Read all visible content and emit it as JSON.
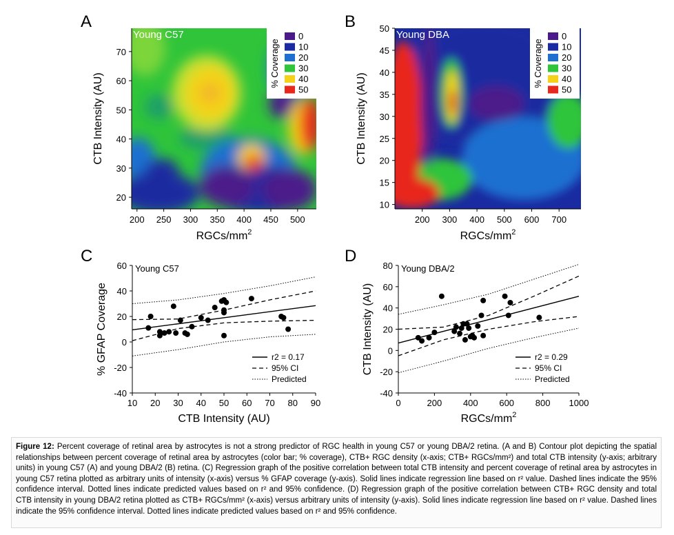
{
  "figure": {
    "caption_label": "Figure 12:",
    "caption_text": "Percent coverage of retinal area by astrocytes is not a strong predictor of RGC health in young C57 or young DBA/2 retina. (A and B) Contour plot depicting the spatial relationships between percent coverage of retinal area by astrocytes (color bar; % coverage), CTB+ RGC density (x-axis; CTB+ RGCs/mm²) and total CTB intensity (y-axis; arbitrary units) in young C57 (A) and young DBA/2 (B) retina. (C) Regression graph of the positive correlation between total CTB intensity and percent coverage of retinal area by astrocytes in young C57 retina plotted as arbitrary units of intensity (x-axis) versus % GFAP coverage (y-axis). Solid lines indicate regression line based on r² value. Dashed lines indicate the 95% confidence interval. Dotted lines indicate predicted values based on r² and 95% confidence. (D) Regression graph of the positive correlation between CTB+ RGC density and total CTB intensity in young DBA/2 retina plotted as CTB+ RGCs/mm² (x-axis) versus arbitrary units of intensity (y-axis). Solid lines indicate regression line based on r² value. Dashed lines indicate the 95% confidence interval. Dotted lines indicate predicted values based on r² and 95% confidence."
  },
  "colors": {
    "c0": "#4b1a8a",
    "c10": "#1a2aa0",
    "c20": "#1f6fd0",
    "c30": "#2fc43a",
    "c40": "#f5d219",
    "c50": "#e8281c"
  },
  "chart_data": [
    {
      "panel": "A",
      "type": "heatmap",
      "title": "Young C57",
      "xlabel": "RGCs/mm2",
      "ylabel": "CTB Intensity (AU)",
      "xticks": [
        "200",
        "250",
        "300",
        "350",
        "400",
        "450",
        "500"
      ],
      "yticks": [
        "20",
        "30",
        "40",
        "50",
        "60",
        "70"
      ],
      "xlim": [
        190,
        535
      ],
      "ylim": [
        16,
        78
      ],
      "legend": {
        "title": "% Coverage",
        "entries": [
          "0",
          "10",
          "20",
          "30",
          "40",
          "50"
        ]
      }
    },
    {
      "panel": "B",
      "type": "heatmap",
      "title": "Young DBA",
      "xlabel": "RGCs/mm2",
      "ylabel": "CTB Intensity (AU)",
      "xticks": [
        "200",
        "300",
        "400",
        "500",
        "600",
        "700"
      ],
      "yticks": [
        "10",
        "15",
        "20",
        "25",
        "30",
        "35",
        "40",
        "45",
        "50"
      ],
      "xlim": [
        100,
        780
      ],
      "ylim": [
        9,
        50
      ],
      "legend": {
        "title": "% Coverage",
        "entries": [
          "0",
          "10",
          "20",
          "30",
          "40",
          "50"
        ]
      }
    },
    {
      "panel": "C",
      "type": "scatter",
      "title": "Young C57",
      "xlabel": "CTB Intensity (AU)",
      "ylabel": "% GFAP Coverage",
      "xticks": [
        "10",
        "20",
        "30",
        "40",
        "50",
        "60",
        "70",
        "80",
        "90"
      ],
      "yticks": [
        "-40",
        "-20",
        "0",
        "20",
        "40",
        "60"
      ],
      "xlim": [
        10,
        90
      ],
      "ylim": [
        -40,
        60
      ],
      "r2_label": "r",
      "r2_value": "2 = 0.17",
      "legend": [
        "95% CI",
        "Predicted"
      ],
      "points": [
        [
          17,
          11
        ],
        [
          18,
          20
        ],
        [
          22,
          5
        ],
        [
          22,
          8
        ],
        [
          24,
          7
        ],
        [
          26,
          8
        ],
        [
          28,
          28
        ],
        [
          29,
          7
        ],
        [
          31,
          17
        ],
        [
          33,
          7
        ],
        [
          34,
          6
        ],
        [
          36,
          12
        ],
        [
          40,
          19
        ],
        [
          43,
          17
        ],
        [
          46,
          27
        ],
        [
          49,
          32
        ],
        [
          50,
          33
        ],
        [
          50,
          23
        ],
        [
          50,
          25
        ],
        [
          50,
          5
        ],
        [
          51,
          31
        ],
        [
          62,
          34
        ],
        [
          75,
          20
        ],
        [
          76,
          19
        ],
        [
          78,
          10
        ]
      ],
      "fit": [
        [
          10,
          9.5
        ],
        [
          90,
          28.5
        ]
      ],
      "ci_upper": [
        [
          10,
          17.5
        ],
        [
          30,
          18
        ],
        [
          50,
          25
        ],
        [
          70,
          33
        ],
        [
          90,
          40
        ]
      ],
      "ci_lower": [
        [
          10,
          1
        ],
        [
          30,
          10.5
        ],
        [
          50,
          15
        ],
        [
          70,
          16.3
        ],
        [
          90,
          17
        ]
      ],
      "pred_upper": [
        [
          10,
          30
        ],
        [
          30,
          33
        ],
        [
          50,
          38
        ],
        [
          70,
          44
        ],
        [
          90,
          51
        ]
      ],
      "pred_lower": [
        [
          10,
          -11
        ],
        [
          30,
          -6
        ],
        [
          50,
          0
        ],
        [
          70,
          4
        ],
        [
          90,
          6
        ]
      ]
    },
    {
      "panel": "D",
      "type": "scatter",
      "title": "Young DBA/2",
      "xlabel": "RGCs/mm2",
      "ylabel": "CTB Intensity (AU)",
      "xticks": [
        "0",
        "200",
        "400",
        "600",
        "800",
        "1000"
      ],
      "yticks": [
        "-40",
        "-20",
        "0",
        "20",
        "40",
        "60",
        "80"
      ],
      "xlim": [
        0,
        1000
      ],
      "ylim": [
        -40,
        80
      ],
      "r2_label": "r",
      "r2_value": "2 = 0.29",
      "legend": [
        "95% CI",
        "Predicted"
      ],
      "points": [
        [
          110,
          12
        ],
        [
          130,
          9
        ],
        [
          170,
          12
        ],
        [
          200,
          17
        ],
        [
          240,
          51
        ],
        [
          310,
          18
        ],
        [
          320,
          22
        ],
        [
          340,
          16
        ],
        [
          350,
          21
        ],
        [
          360,
          25
        ],
        [
          370,
          10
        ],
        [
          380,
          25
        ],
        [
          390,
          21
        ],
        [
          400,
          13
        ],
        [
          410,
          14
        ],
        [
          420,
          12
        ],
        [
          440,
          23
        ],
        [
          460,
          33
        ],
        [
          470,
          47
        ],
        [
          470,
          14
        ],
        [
          590,
          51
        ],
        [
          610,
          33
        ],
        [
          620,
          45
        ],
        [
          780,
          31
        ]
      ],
      "fit": [
        [
          0,
          7
        ],
        [
          1000,
          51
        ]
      ],
      "ci_upper": [
        [
          0,
          20
        ],
        [
          250,
          22
        ],
        [
          500,
          33
        ],
        [
          750,
          51
        ],
        [
          1000,
          70
        ]
      ],
      "ci_lower": [
        [
          0,
          -5
        ],
        [
          250,
          10
        ],
        [
          500,
          20
        ],
        [
          750,
          27
        ],
        [
          1000,
          32
        ]
      ],
      "pred_upper": [
        [
          0,
          34
        ],
        [
          250,
          43
        ],
        [
          500,
          53
        ],
        [
          750,
          67
        ],
        [
          1000,
          81
        ]
      ],
      "pred_lower": [
        [
          0,
          -21
        ],
        [
          250,
          -10
        ],
        [
          500,
          2
        ],
        [
          750,
          12
        ],
        [
          1000,
          21
        ]
      ]
    }
  ]
}
